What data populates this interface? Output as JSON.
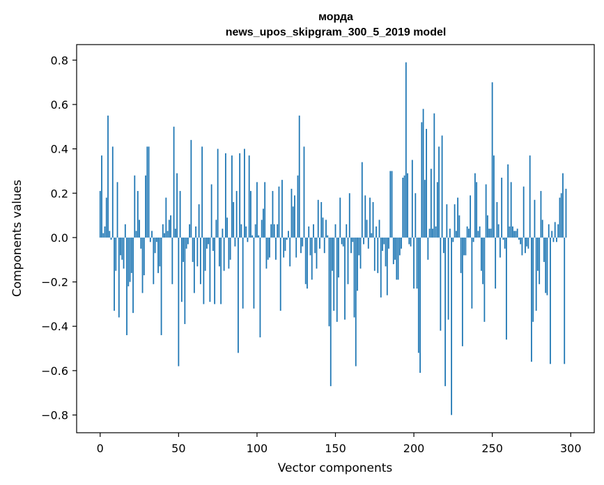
{
  "chart_data": {
    "type": "bar",
    "title": "морда",
    "subtitle": "news_upos_skipgram_300_5_2019 model",
    "xlabel": "Vector components",
    "ylabel": "Components values",
    "xlim": [
      -15,
      315
    ],
    "ylim": [
      -0.88,
      0.87
    ],
    "xticks": [
      0,
      50,
      100,
      150,
      200,
      250,
      300
    ],
    "xtick_labels": [
      "0",
      "50",
      "100",
      "150",
      "200",
      "250",
      "300"
    ],
    "yticks": [
      0.8,
      0.6,
      0.4,
      0.2,
      0.0,
      -0.2,
      -0.4,
      -0.6,
      -0.8
    ],
    "ytick_labels": [
      "0.8",
      "0.6",
      "0.4",
      "0.2",
      "0.0",
      "−0.2",
      "−0.4",
      "−0.6",
      "−0.8"
    ],
    "grid": false,
    "bar_color": "#1f77b4",
    "x_start": 0,
    "values": [
      0.21,
      0.37,
      0.02,
      0.05,
      0.18,
      0.55,
      0.03,
      -0.01,
      0.41,
      -0.33,
      -0.15,
      0.25,
      -0.36,
      -0.08,
      -0.1,
      -0.14,
      0.06,
      -0.44,
      -0.22,
      -0.2,
      -0.16,
      -0.34,
      0.28,
      0.03,
      0.21,
      0.08,
      -0.05,
      -0.25,
      -0.17,
      0.28,
      0.41,
      0.41,
      -0.02,
      0.03,
      -0.21,
      -0.07,
      -0.02,
      -0.16,
      -0.13,
      -0.44,
      0.06,
      0.02,
      0.18,
      0.03,
      0.08,
      0.1,
      -0.21,
      0.5,
      0.04,
      0.29,
      -0.58,
      0.21,
      -0.29,
      -0.11,
      -0.39,
      -0.05,
      -0.03,
      0.06,
      0.44,
      -0.11,
      -0.25,
      0.05,
      -0.13,
      0.15,
      -0.21,
      0.41,
      -0.3,
      -0.15,
      -0.05,
      -0.03,
      -0.29,
      0.24,
      -0.06,
      -0.3,
      0.08,
      0.4,
      -0.13,
      -0.3,
      0.04,
      -0.15,
      0.38,
      0.09,
      -0.14,
      -0.1,
      0.37,
      0.16,
      -0.04,
      0.21,
      -0.52,
      0.38,
      0.06,
      -0.32,
      0.4,
      0.05,
      -0.02,
      0.37,
      0.21,
      0.01,
      -0.32,
      0.06,
      0.25,
      0.01,
      -0.45,
      0.08,
      0.13,
      0.25,
      -0.14,
      -0.1,
      -0.09,
      0.06,
      0.21,
      0.06,
      -0.1,
      0.06,
      0.23,
      -0.33,
      0.26,
      -0.09,
      -0.06,
      -0.01,
      0.03,
      -0.13,
      0.22,
      0.14,
      0.19,
      -0.09,
      0.28,
      0.55,
      -0.07,
      -0.04,
      0.41,
      -0.21,
      -0.23,
      0.05,
      -0.08,
      -0.19,
      0.06,
      -0.07,
      -0.14,
      0.17,
      -0.05,
      0.16,
      0.09,
      -0.07,
      0.08,
      0.01,
      -0.4,
      -0.67,
      -0.15,
      -0.33,
      0.06,
      -0.38,
      -0.18,
      0.18,
      -0.03,
      -0.04,
      -0.37,
      0.06,
      -0.21,
      0.2,
      -0.07,
      -0.02,
      -0.36,
      -0.58,
      -0.24,
      -0.08,
      -0.14,
      0.34,
      -0.03,
      0.19,
      0.08,
      -0.05,
      0.18,
      0.02,
      0.16,
      -0.15,
      0.05,
      -0.16,
      0.08,
      -0.27,
      -0.06,
      -0.03,
      -0.13,
      -0.26,
      -0.05,
      0.3,
      0.3,
      -0.12,
      -0.1,
      -0.19,
      -0.19,
      -0.08,
      -0.05,
      0.27,
      0.28,
      0.79,
      0.29,
      -0.03,
      -0.04,
      0.35,
      -0.23,
      0.2,
      -0.23,
      -0.52,
      -0.61,
      0.52,
      0.58,
      0.26,
      0.49,
      -0.1,
      0.04,
      0.31,
      0.04,
      0.56,
      0.05,
      0.25,
      0.41,
      -0.42,
      0.46,
      -0.07,
      -0.67,
      0.15,
      -0.37,
      0.04,
      -0.8,
      -0.02,
      0.15,
      0.03,
      0.18,
      0.1,
      -0.16,
      -0.49,
      -0.08,
      -0.08,
      0.05,
      0.04,
      0.19,
      -0.32,
      -0.02,
      0.29,
      0.25,
      0.03,
      0.05,
      -0.15,
      -0.21,
      -0.38,
      0.24,
      0.1,
      0.04,
      0.04,
      0.7,
      0.37,
      -0.23,
      0.16,
      0.06,
      -0.09,
      0.27,
      -0.01,
      -0.05,
      -0.46,
      0.33,
      0.05,
      0.25,
      0.05,
      0.03,
      0.03,
      0.04,
      -0.01,
      -0.03,
      -0.08,
      0.23,
      -0.07,
      -0.04,
      -0.05,
      0.37,
      -0.56,
      -0.38,
      0.17,
      -0.33,
      -0.15,
      -0.21,
      0.21,
      0.08,
      -0.11,
      -0.25,
      -0.26,
      0.06,
      -0.57,
      0.03,
      -0.02,
      0.07,
      -0.02,
      0.06,
      0.18,
      0.2,
      0.29,
      -0.57,
      0.22
    ]
  }
}
